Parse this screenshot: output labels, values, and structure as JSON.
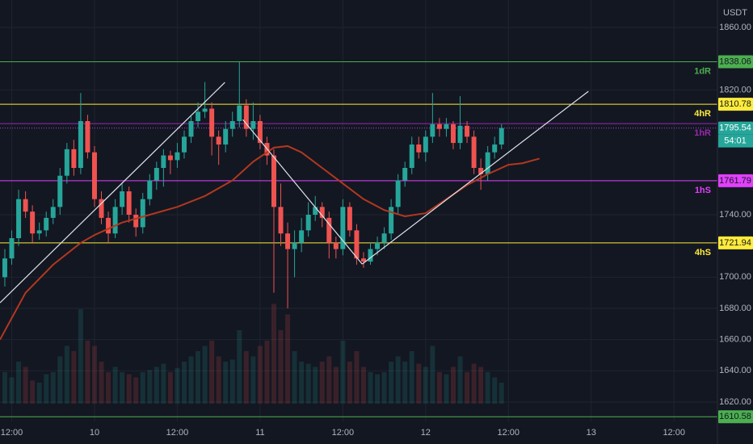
{
  "chart_data": {
    "type": "candlestick",
    "currency": "USDT",
    "xlim": [
      -13.7,
      90.3
    ],
    "xticks": [
      {
        "value": -12,
        "label": "12:00"
      },
      {
        "value": 0,
        "label": "10"
      },
      {
        "value": 12,
        "label": "12:00"
      },
      {
        "value": 24,
        "label": "11"
      },
      {
        "value": 36,
        "label": "12:00"
      },
      {
        "value": 48,
        "label": "12"
      },
      {
        "value": 60,
        "label": "12:00"
      },
      {
        "value": 72,
        "label": "13"
      },
      {
        "value": 84,
        "label": "12:00"
      }
    ],
    "ylim": [
      1593.1,
      1877.6
    ],
    "yticks": [
      {
        "value": 1860,
        "label": "1860.00"
      },
      {
        "value": 1820,
        "label": "1820.00"
      },
      {
        "value": 1740,
        "label": "1740.00"
      },
      {
        "value": 1700,
        "label": "1700.00"
      },
      {
        "value": 1680,
        "label": "1680.00"
      },
      {
        "value": 1660,
        "label": "1660.00"
      },
      {
        "value": 1640,
        "label": "1640.00"
      },
      {
        "value": 1620,
        "label": "1620.00"
      }
    ],
    "grid": true,
    "up_color": "#26a69a",
    "down_color": "#ef5350",
    "x": [
      -13,
      -12,
      -11,
      -10,
      -9,
      -8,
      -7,
      -6,
      -5,
      -4,
      -3,
      -2,
      -1,
      0,
      1,
      2,
      3,
      4,
      5,
      6,
      7,
      8,
      9,
      10,
      11,
      12,
      13,
      14,
      15,
      16,
      17,
      18,
      19,
      20,
      21,
      22,
      23,
      24,
      25,
      26,
      27,
      28,
      29,
      30,
      31,
      32,
      33,
      34,
      35,
      36,
      37,
      38,
      39,
      40,
      41,
      42,
      43,
      44,
      45,
      46,
      47,
      48,
      49,
      50,
      51,
      52,
      53,
      54,
      55,
      56,
      57,
      58,
      59
    ],
    "candles": [
      [
        1700,
        1718,
        1694,
        1712
      ],
      [
        1712,
        1730,
        1708,
        1725
      ],
      [
        1725,
        1756,
        1720,
        1750
      ],
      [
        1750,
        1755,
        1738,
        1742
      ],
      [
        1742,
        1746,
        1722,
        1728
      ],
      [
        1728,
        1735,
        1724,
        1730
      ],
      [
        1730,
        1742,
        1726,
        1738
      ],
      [
        1738,
        1750,
        1734,
        1745
      ],
      [
        1745,
        1770,
        1740,
        1765
      ],
      [
        1765,
        1786,
        1760,
        1782
      ],
      [
        1782,
        1788,
        1765,
        1770
      ],
      [
        1770,
        1818,
        1766,
        1800
      ],
      [
        1800,
        1804,
        1776,
        1780
      ],
      [
        1780,
        1784,
        1745,
        1750
      ],
      [
        1750,
        1755,
        1734,
        1738
      ],
      [
        1738,
        1742,
        1722,
        1728
      ],
      [
        1728,
        1750,
        1725,
        1745
      ],
      [
        1745,
        1760,
        1740,
        1755
      ],
      [
        1755,
        1758,
        1735,
        1740
      ],
      [
        1740,
        1744,
        1726,
        1732
      ],
      [
        1732,
        1754,
        1728,
        1750
      ],
      [
        1750,
        1766,
        1746,
        1762
      ],
      [
        1762,
        1774,
        1756,
        1770
      ],
      [
        1770,
        1782,
        1758,
        1778
      ],
      [
        1778,
        1781,
        1766,
        1775
      ],
      [
        1775,
        1786,
        1770,
        1780
      ],
      [
        1780,
        1794,
        1776,
        1790
      ],
      [
        1790,
        1803,
        1786,
        1800
      ],
      [
        1800,
        1812,
        1796,
        1806
      ],
      [
        1806,
        1825,
        1802,
        1808
      ],
      [
        1808,
        1812,
        1778,
        1790
      ],
      [
        1790,
        1794,
        1772,
        1785
      ],
      [
        1785,
        1800,
        1780,
        1795
      ],
      [
        1795,
        1806,
        1790,
        1800
      ],
      [
        1800,
        1838,
        1796,
        1810
      ],
      [
        1810,
        1814,
        1790,
        1795
      ],
      [
        1795,
        1812,
        1788,
        1800
      ],
      [
        1800,
        1804,
        1782,
        1786
      ],
      [
        1786,
        1790,
        1772,
        1778
      ],
      [
        1778,
        1782,
        1690,
        1745
      ],
      [
        1745,
        1760,
        1720,
        1728
      ],
      [
        1728,
        1735,
        1680,
        1718
      ],
      [
        1718,
        1730,
        1700,
        1722
      ],
      [
        1722,
        1738,
        1716,
        1730
      ],
      [
        1730,
        1748,
        1726,
        1740
      ],
      [
        1740,
        1752,
        1736,
        1745
      ],
      [
        1745,
        1748,
        1732,
        1738
      ],
      [
        1738,
        1742,
        1712,
        1722
      ],
      [
        1722,
        1726,
        1712,
        1718
      ],
      [
        1718,
        1750,
        1714,
        1745
      ],
      [
        1745,
        1748,
        1726,
        1730
      ],
      [
        1730,
        1734,
        1708,
        1712
      ],
      [
        1712,
        1716,
        1706,
        1710
      ],
      [
        1710,
        1722,
        1708,
        1718
      ],
      [
        1718,
        1726,
        1714,
        1722
      ],
      [
        1722,
        1732,
        1718,
        1728
      ],
      [
        1728,
        1750,
        1724,
        1745
      ],
      [
        1745,
        1766,
        1740,
        1762
      ],
      [
        1762,
        1774,
        1758,
        1770
      ],
      [
        1770,
        1790,
        1766,
        1785
      ],
      [
        1785,
        1790,
        1776,
        1780
      ],
      [
        1780,
        1794,
        1774,
        1790
      ],
      [
        1790,
        1818,
        1786,
        1798
      ],
      [
        1798,
        1802,
        1790,
        1795
      ],
      [
        1795,
        1802,
        1790,
        1798
      ],
      [
        1798,
        1800,
        1782,
        1786
      ],
      [
        1786,
        1816,
        1782,
        1797
      ],
      [
        1797,
        1800,
        1786,
        1790
      ],
      [
        1790,
        1794,
        1766,
        1770
      ],
      [
        1770,
        1776,
        1756,
        1766
      ],
      [
        1766,
        1784,
        1762,
        1780
      ],
      [
        1780,
        1790,
        1776,
        1785
      ],
      [
        1785,
        1798,
        1782,
        1795.54
      ]
    ],
    "volume_lim": [
      0,
      100
    ],
    "volume": [
      30,
      25,
      40,
      35,
      22,
      20,
      28,
      30,
      45,
      55,
      50,
      90,
      60,
      55,
      40,
      30,
      35,
      30,
      28,
      25,
      30,
      32,
      35,
      38,
      30,
      34,
      40,
      45,
      50,
      55,
      60,
      45,
      40,
      42,
      70,
      50,
      45,
      55,
      60,
      95,
      70,
      85,
      50,
      40,
      38,
      35,
      40,
      45,
      35,
      60,
      40,
      50,
      35,
      30,
      28,
      30,
      40,
      45,
      40,
      50,
      38,
      35,
      55,
      30,
      28,
      35,
      45,
      30,
      38,
      35,
      30,
      25,
      20
    ],
    "ma": {
      "color": "#b2381f",
      "x": [
        -13.7,
        -10,
        -6,
        -2,
        0,
        4,
        8,
        12,
        16,
        20,
        23,
        26,
        28,
        30,
        33,
        36,
        39,
        42,
        45,
        48,
        51,
        54,
        57,
        60,
        62,
        64.5
      ],
      "values": [
        1660,
        1690,
        1708,
        1722,
        1727,
        1735,
        1740,
        1745,
        1752,
        1762,
        1774,
        1783,
        1784,
        1780,
        1770,
        1760,
        1750,
        1743,
        1739,
        1741,
        1750,
        1759,
        1766,
        1772,
        1773,
        1776
      ]
    },
    "trendlines": [
      {
        "x": [
          -13.7,
          18.9
        ],
        "y": [
          1683.6,
          1824.8
        ]
      },
      {
        "x": [
          21.5,
          38.8
        ],
        "y": [
          1801,
          1708.4
        ]
      },
      {
        "x": [
          38.8,
          71.6
        ],
        "y": [
          1708.4,
          1819.1
        ]
      }
    ],
    "levels": [
      {
        "name": "1dR",
        "value": 1838.06,
        "color": "#4caf50",
        "show_tag": true
      },
      {
        "name": "4hR",
        "value": 1810.78,
        "color": "#ffeb3b",
        "show_tag": true
      },
      {
        "name": "1hR",
        "value": 1798.4,
        "color": "#9c27b0",
        "show_tag": false
      },
      {
        "name": "1hS",
        "value": 1761.79,
        "color": "#e040fb",
        "show_tag": true
      },
      {
        "name": "4hS",
        "value": 1721.94,
        "color": "#ffeb3b",
        "show_tag": true
      },
      {
        "value": 1610.58,
        "color": "#4caf50",
        "show_tag": true
      }
    ],
    "current_price": {
      "value": 1795.54,
      "countdown": "54:01",
      "color": "#26a69a",
      "line_color": "#b040e0"
    }
  }
}
